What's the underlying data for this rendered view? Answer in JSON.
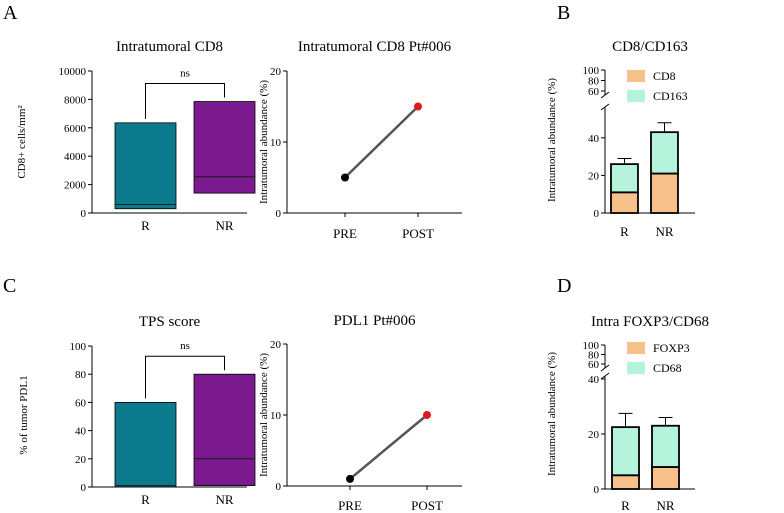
{
  "panel_labels": [
    "A",
    "B",
    "C",
    "D"
  ],
  "chart_data": [
    {
      "type": "box",
      "title": "Intratumoral CD8",
      "ylabel": "CD8+ cells/mm²",
      "xlabel": "",
      "ylim": [
        0,
        10000
      ],
      "yticks": [
        "0",
        "2000",
        "4000",
        "6000",
        "8000",
        "10000"
      ],
      "categories": [
        "R",
        "NR"
      ],
      "series": [
        {
          "name": "R",
          "color": "#0a7a8c",
          "min": 300,
          "median": 600,
          "max": 6350
        },
        {
          "name": "NR",
          "color": "#7a1a8e",
          "min": 1400,
          "median": 2550,
          "max": 7850
        }
      ],
      "annotation": "ns"
    },
    {
      "type": "line",
      "title": "Intratumoral CD8 Pt#006",
      "ylabel": "Intratumoral abundance (%)",
      "ylim": [
        0,
        20
      ],
      "yticks": [
        "0",
        "10",
        "20"
      ],
      "categories": [
        "PRE",
        "POST"
      ],
      "values": [
        5,
        15
      ],
      "point_colors": [
        "#000000",
        "#e01b1b"
      ]
    },
    {
      "type": "stacked-bar",
      "title": "CD8/CD163",
      "ylabel": "Intratumoral abundance (%)",
      "ylim": [
        0,
        100
      ],
      "axis_break": [
        50,
        60
      ],
      "yticks_lower": [
        "0",
        "20",
        "40"
      ],
      "yticks_upper": [
        "60",
        "80",
        "100"
      ],
      "categories": [
        "R",
        "NR"
      ],
      "series": [
        {
          "name": "CD8",
          "color": "#f8c08a",
          "values": [
            11,
            21
          ],
          "errors": [
            4,
            5
          ]
        },
        {
          "name": "CD163",
          "color": "#b6f3dc",
          "values": [
            15,
            22
          ],
          "errors": [
            3,
            5
          ]
        }
      ]
    },
    {
      "type": "box",
      "title": "TPS score",
      "ylabel": "% of tumor PDL1",
      "ylim": [
        0,
        100
      ],
      "yticks": [
        "0",
        "20",
        "40",
        "60",
        "80",
        "100"
      ],
      "categories": [
        "R",
        "NR"
      ],
      "series": [
        {
          "name": "R",
          "color": "#0a7a8c",
          "min": 0,
          "median": 1,
          "max": 60
        },
        {
          "name": "NR",
          "color": "#7a1a8e",
          "min": 1,
          "median": 20,
          "max": 80
        }
      ],
      "annotation": "ns"
    },
    {
      "type": "line",
      "title": "PDL1 Pt#006",
      "ylabel": "Intratumoral abundance (%)",
      "ylim": [
        0,
        20
      ],
      "yticks": [
        "0",
        "10",
        "20"
      ],
      "categories": [
        "PRE",
        "POST"
      ],
      "values": [
        1,
        10
      ],
      "point_colors": [
        "#000000",
        "#e01b1b"
      ]
    },
    {
      "type": "stacked-bar",
      "title": "Intra FOXP3/CD68",
      "ylabel": "Intratumoral abundance (%)",
      "ylim": [
        0,
        100
      ],
      "axis_break": [
        40,
        60
      ],
      "yticks_lower": [
        "0",
        "20",
        "40"
      ],
      "yticks_upper": [
        "60",
        "80",
        "100"
      ],
      "categories": [
        "R",
        "NR"
      ],
      "series": [
        {
          "name": "FOXP3",
          "color": "#f8c08a",
          "values": [
            5,
            8
          ],
          "errors": [
            4,
            4
          ]
        },
        {
          "name": "CD68",
          "color": "#b6f3dc",
          "values": [
            17.5,
            15
          ],
          "errors": [
            5,
            3
          ]
        }
      ]
    }
  ]
}
